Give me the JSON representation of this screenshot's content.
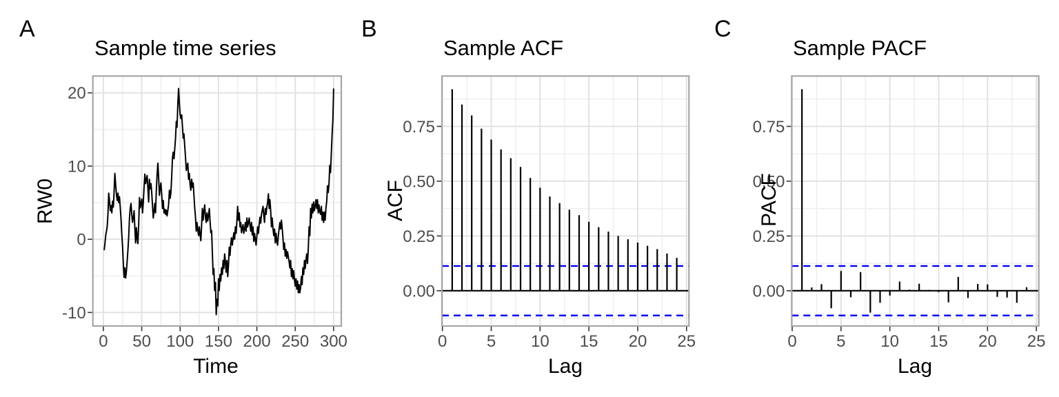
{
  "figure": {
    "background": "#ffffff",
    "series_color": "#000000",
    "conf_line_color": "#0000f5",
    "grid_major_color": "#e2e2e2",
    "grid_minor_color": "#f0f0f0",
    "panel_border_color": "#a6a6a6",
    "tick_mark_color": "#333333",
    "tick_label_color": "#4d4d4d"
  },
  "panels": [
    {
      "label": "A",
      "title": "Sample time series",
      "x_axis": {
        "title": "Time",
        "tick_labels": [
          "0",
          "50",
          "100",
          "150",
          "200",
          "250",
          "300"
        ]
      },
      "y_axis": {
        "title": "RW0",
        "tick_labels": [
          "20",
          "10",
          "0",
          "-10"
        ]
      }
    },
    {
      "label": "B",
      "title": "Sample ACF",
      "x_axis": {
        "title": "Lag",
        "tick_labels": [
          "0",
          "5",
          "10",
          "15",
          "20",
          "25"
        ]
      },
      "y_axis": {
        "title": "ACF",
        "tick_labels": [
          "0.75",
          "0.50",
          "0.25",
          "0.00"
        ]
      }
    },
    {
      "label": "C",
      "title": "Sample PACF",
      "x_axis": {
        "title": "Lag",
        "tick_labels": [
          "0",
          "5",
          "10",
          "15",
          "20",
          "25"
        ]
      },
      "y_axis": {
        "title": "PACF",
        "tick_labels": [
          "0.75",
          "0.50",
          "0.25",
          "0.00"
        ]
      }
    }
  ],
  "chart_data": [
    {
      "panel": "A",
      "type": "line",
      "title": "Sample time series",
      "xlabel": "Time",
      "ylabel": "RW0",
      "x_start": 1,
      "x_step": 1,
      "xlim": [
        -13.7,
        310
      ],
      "ylim": [
        -11.85,
        22.3
      ],
      "values": [
        -1.5,
        -0.6,
        0.5,
        1.1,
        1.7,
        3.5,
        6.3,
        5.2,
        3.9,
        4.6,
        3.6,
        5.2,
        4.4,
        6.5,
        9.0,
        7.4,
        6.1,
        5.3,
        6.3,
        5.0,
        5.8,
        4.4,
        2.8,
        0.6,
        -1.0,
        -3.4,
        -5.2,
        -3.9,
        -5.3,
        -4.4,
        -2.9,
        -1.4,
        0.4,
        2.9,
        4.2,
        4.9,
        3.4,
        2.3,
        3.0,
        3.9,
        1.5,
        -0.5,
        1.6,
        0.2,
        -0.6,
        2.1,
        5.7,
        4.3,
        4.9,
        5.5,
        3.6,
        5.0,
        7.0,
        8.9,
        7.6,
        8.2,
        8.7,
        7.0,
        5.1,
        8.2,
        6.9,
        7.6,
        6.3,
        4.6,
        2.9,
        3.8,
        4.9,
        3.6,
        6.8,
        8.9,
        10.4,
        8.4,
        6.0,
        7.0,
        7.7,
        6.2,
        4.2,
        5.3,
        3.6,
        4.1,
        3.4,
        4.0,
        3.2,
        3.9,
        4.8,
        6.7,
        5.6,
        6.4,
        8.5,
        11.0,
        11.9,
        11.0,
        12.4,
        13.8,
        16.1,
        15.3,
        18.4,
        20.6,
        18.6,
        17.0,
        16.5,
        17.0,
        15.5,
        13.8,
        14.4,
        12.8,
        11.3,
        9.4,
        10.0,
        10.4,
        8.2,
        9.0,
        7.5,
        6.7,
        8.2,
        7.1,
        7.7,
        6.0,
        4.3,
        3.1,
        1.1,
        2.3,
        1.3,
        0.5,
        1.7,
        0.6,
        -0.2,
        1.9,
        4.2,
        2.6,
        3.9,
        4.7,
        3.0,
        2.3,
        3.6,
        2.5,
        3.2,
        4.2,
        2.5,
        0.9,
        1.2,
        -1.8,
        -4.8,
        -4.0,
        -7.0,
        -5.9,
        -10.3,
        -8.2,
        -9.1,
        -5.4,
        -7.0,
        -4.8,
        -5.7,
        -3.9,
        -4.8,
        -2.9,
        -4.0,
        -2.0,
        -3.0,
        -4.5,
        -2.9,
        -5.1,
        -3.5,
        -1.1,
        -2.2,
        -0.6,
        0.2,
        -0.8,
        0.1,
        0.9,
        0.0,
        1.7,
        0.8,
        2.5,
        4.5,
        2.6,
        3.6,
        1.7,
        2.3,
        0.9,
        1.5,
        2.0,
        0.8,
        1.4,
        2.3,
        1.1,
        2.9,
        1.7,
        2.2,
        2.9,
        2.0,
        1.1,
        2.3,
        0.6,
        1.7,
        -0.3,
        0.8,
        0.0,
        -0.8,
        0.5,
        1.7,
        0.8,
        2.0,
        3.0,
        2.2,
        3.4,
        4.0,
        4.5,
        3.2,
        2.3,
        4.2,
        3.4,
        4.4,
        5.0,
        6.2,
        4.2,
        5.4,
        3.9,
        1.7,
        2.9,
        1.5,
        0.5,
        1.4,
        -0.5,
        0.8,
        -0.2,
        -0.8,
        0.5,
        1.4,
        2.3,
        1.4,
        2.6,
        1.5,
        0.2,
        -1.4,
        -0.5,
        -2.3,
        -1.4,
        -2.6,
        -1.7,
        -2.4,
        -3.0,
        -3.9,
        -2.9,
        -5.1,
        -4.0,
        -5.4,
        -4.3,
        -5.5,
        -6.4,
        -5.4,
        -6.8,
        -5.7,
        -7.3,
        -6.2,
        -7.3,
        -6.6,
        -5.1,
        -6.2,
        -3.9,
        -4.8,
        -2.9,
        -4.0,
        -2.8,
        -2.0,
        -3.3,
        -1.4,
        1.7,
        0.5,
        4.2,
        2.9,
        4.8,
        3.6,
        5.1,
        3.9,
        4.6,
        5.4,
        4.2,
        5.4,
        3.6,
        4.7,
        3.8,
        3.4,
        4.5,
        2.6,
        3.7,
        2.3,
        3.7,
        2.6,
        4.2,
        5.2,
        7.3,
        6.4,
        7.6,
        10.1,
        9.1,
        11.6,
        14.1,
        16.3,
        20.6
      ]
    },
    {
      "panel": "B",
      "type": "bar",
      "title": "Sample ACF",
      "xlabel": "Lag",
      "ylabel": "ACF",
      "lags": [
        1,
        2,
        3,
        4,
        5,
        6,
        7,
        8,
        9,
        10,
        11,
        12,
        13,
        14,
        15,
        16,
        17,
        18,
        19,
        20,
        21,
        22,
        23,
        24
      ],
      "values": [
        0.92,
        0.85,
        0.8,
        0.74,
        0.69,
        0.645,
        0.605,
        0.565,
        0.515,
        0.47,
        0.43,
        0.4,
        0.37,
        0.345,
        0.315,
        0.29,
        0.27,
        0.25,
        0.235,
        0.22,
        0.205,
        0.19,
        0.17,
        0.15
      ],
      "conf_level": 0.113,
      "xlim": [
        -0.05,
        25.25
      ],
      "ylim": [
        -0.161,
        0.98
      ]
    },
    {
      "panel": "C",
      "type": "bar",
      "title": "Sample PACF",
      "xlabel": "Lag",
      "ylabel": "PACF",
      "lags": [
        1,
        2,
        3,
        4,
        5,
        6,
        7,
        8,
        9,
        10,
        11,
        12,
        13,
        14,
        15,
        16,
        17,
        18,
        19,
        20,
        21,
        22,
        23,
        24
      ],
      "values": [
        0.92,
        0.015,
        0.03,
        -0.08,
        0.09,
        -0.03,
        0.085,
        -0.1,
        -0.055,
        -0.022,
        0.042,
        0.005,
        0.032,
        0.004,
        -0.006,
        -0.053,
        0.063,
        -0.033,
        0.031,
        0.029,
        -0.028,
        -0.031,
        -0.055,
        0.016
      ],
      "conf_level": 0.113,
      "xlim": [
        -0.05,
        25.25
      ],
      "ylim": [
        -0.161,
        0.98
      ]
    }
  ]
}
